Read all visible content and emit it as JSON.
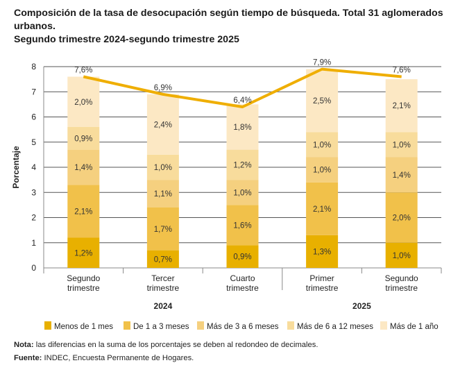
{
  "chart_data": {
    "type": "bar",
    "stacked": true,
    "title": "Composición de la tasa de desocupación según tiempo de búsqueda. Total 31 aglomerados urbanos.",
    "subtitle": "Segundo trimestre 2024-segundo trimestre 2025",
    "ylabel": "Porcentaje",
    "ylim": [
      0,
      8
    ],
    "yticks": [
      "0",
      "1",
      "2",
      "3",
      "4",
      "5",
      "6",
      "7",
      "8"
    ],
    "grid": true,
    "legend_position": "bottom",
    "categories": [
      [
        "Segundo",
        "trimestre"
      ],
      [
        "Tercer",
        "trimestre"
      ],
      [
        "Cuarto",
        "trimestre"
      ],
      [
        "Primer",
        "trimestre"
      ],
      [
        "Segundo",
        "trimestre"
      ]
    ],
    "groups": [
      {
        "label": "2024",
        "span": [
          0,
          2
        ]
      },
      {
        "label": "2025",
        "span": [
          3,
          4
        ]
      }
    ],
    "series": [
      {
        "name": "Menos de 1 mes",
        "color": "#E8B000",
        "values": [
          1.2,
          0.7,
          0.9,
          1.3,
          1.0
        ],
        "labels": [
          "1,2%",
          "0,7%",
          "0,9%",
          "1,3%",
          "1,0%"
        ]
      },
      {
        "name": "De 1 a 3 meses",
        "color": "#F1C14A",
        "values": [
          2.1,
          1.7,
          1.6,
          2.1,
          2.0
        ],
        "labels": [
          "2,1%",
          "1,7%",
          "1,6%",
          "2,1%",
          "2,0%"
        ]
      },
      {
        "name": "Más de 3 a 6 meses",
        "color": "#F5D07F",
        "values": [
          1.4,
          1.1,
          1.0,
          1.0,
          1.4
        ],
        "labels": [
          "1,4%",
          "1,1%",
          "1,0%",
          "1,0%",
          "1,4%"
        ]
      },
      {
        "name": "Más de 6 a 12 meses",
        "color": "#F8DC9C",
        "values": [
          0.9,
          1.0,
          1.2,
          1.0,
          1.0
        ],
        "labels": [
          "0,9%",
          "1,0%",
          "1,2%",
          "1,0%",
          "1,0%"
        ]
      },
      {
        "name": "Más de 1 año",
        "color": "#FCE8C4",
        "values": [
          2.0,
          2.4,
          1.8,
          2.5,
          2.1
        ],
        "labels": [
          "2,0%",
          "2,4%",
          "1,8%",
          "2,5%",
          "2,1%"
        ]
      }
    ],
    "total_line": {
      "color": "#EFAE00",
      "values": [
        7.6,
        6.9,
        6.4,
        7.9,
        7.6
      ],
      "labels": [
        "7,6%",
        "6,9%",
        "6,4%",
        "7,9%",
        "7,6%"
      ]
    }
  },
  "notes": {
    "nota_label": "Nota:",
    "nota_text": " las diferencias en la suma de los porcentajes se deben al redondeo de decimales.",
    "fuente_label": "Fuente:",
    "fuente_text": " INDEC, Encuesta Permanente de Hogares."
  }
}
